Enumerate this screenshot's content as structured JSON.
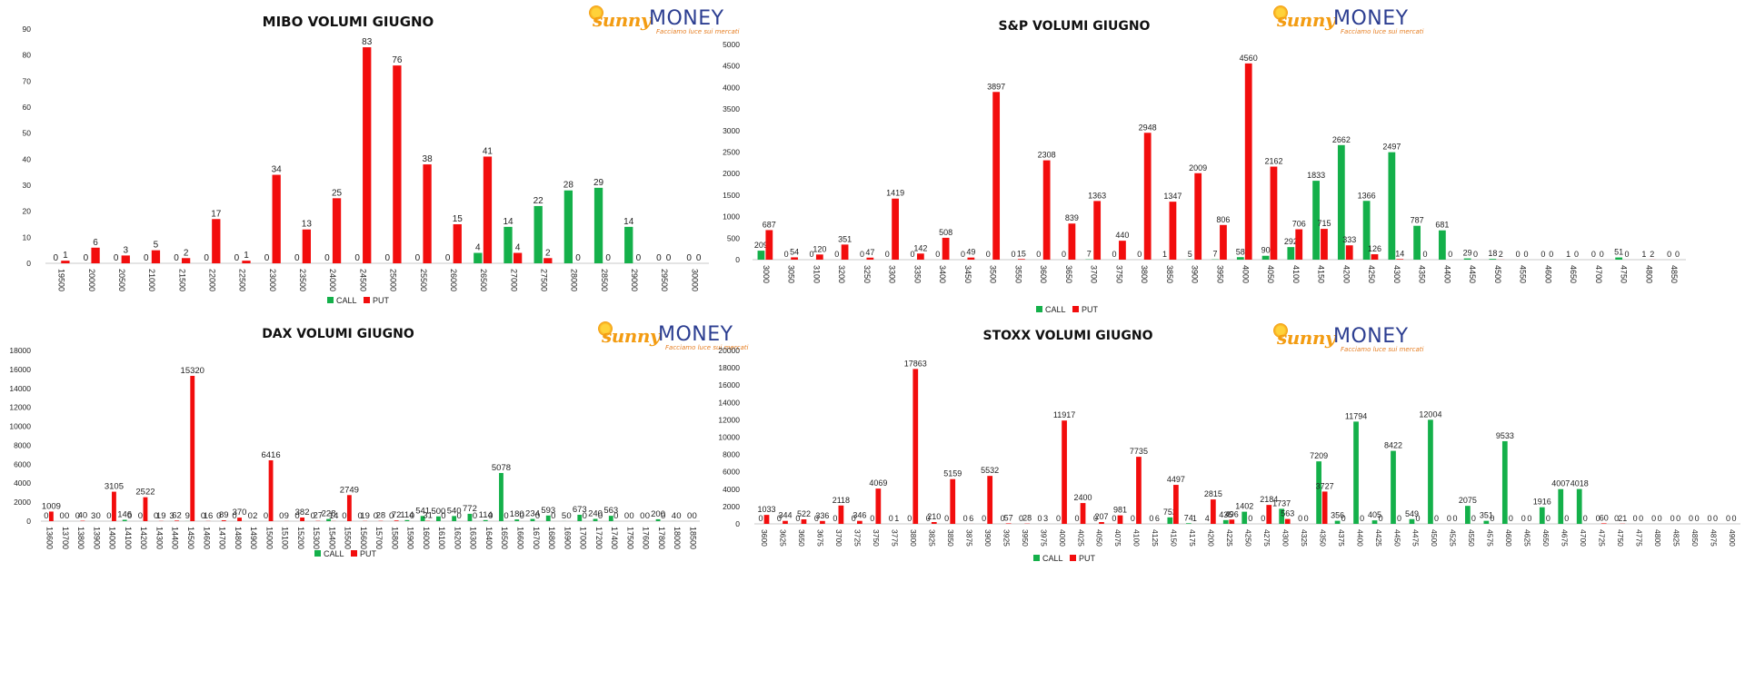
{
  "colors": {
    "call": "#14b04a",
    "put": "#f20d0d",
    "axis": "#c8c8c8",
    "text": "#222222"
  },
  "logo": {
    "brand_a": "sunny",
    "brand_b": "MONEY",
    "tagline": "Facciamo luce sui mercati"
  },
  "chart_data": [
    {
      "type": "bar",
      "title": "MIBO VOLUMI GIUGNO",
      "ylim": [
        0,
        90
      ],
      "yticks": [
        0,
        10,
        20,
        30,
        40,
        50,
        60,
        70,
        80,
        90
      ],
      "legend": "bottom-center",
      "categories": [
        "19500",
        "20000",
        "20500",
        "21000",
        "21500",
        "22000",
        "22500",
        "23000",
        "23500",
        "24000",
        "24500",
        "25000",
        "25500",
        "26000",
        "26500",
        "27000",
        "27500",
        "28000",
        "28500",
        "29000",
        "29500",
        "30000"
      ],
      "series": [
        {
          "name": "CALL",
          "values": [
            0,
            0,
            0,
            0,
            0,
            0,
            0,
            0,
            0,
            0,
            0,
            0,
            0,
            0,
            4,
            14,
            22,
            28,
            29,
            14,
            0,
            0
          ]
        },
        {
          "name": "PUT",
          "values": [
            1,
            6,
            3,
            5,
            2,
            17,
            1,
            34,
            13,
            25,
            83,
            76,
            38,
            15,
            41,
            4,
            2,
            0,
            0,
            0,
            0,
            0
          ]
        }
      ]
    },
    {
      "type": "bar",
      "title": "S&P VOLUMI GIUGNO",
      "ylim": [
        0,
        5000
      ],
      "yticks": [
        0,
        500,
        1000,
        1500,
        2000,
        2500,
        3000,
        3500,
        4000,
        4500,
        5000
      ],
      "legend": "bottom-center",
      "categories": [
        "3000",
        "3050",
        "3100",
        "3200",
        "3250",
        "3300",
        "3350",
        "3400",
        "3450",
        "3500",
        "3550",
        "3600",
        "3650",
        "3700",
        "3750",
        "3800",
        "3850",
        "3900",
        "3950",
        "4000",
        "4050",
        "4100",
        "4150",
        "4200",
        "4250",
        "4300",
        "4350",
        "4400",
        "4450",
        "4500",
        "4550",
        "4600",
        "4650",
        "4700",
        "4750",
        "4800",
        "4850"
      ],
      "series": [
        {
          "name": "CALL",
          "values": [
            209,
            0,
            0,
            0,
            0,
            0,
            0,
            0,
            0,
            0,
            0,
            0,
            0,
            7,
            0,
            0,
            1,
            5,
            7,
            58,
            90,
            292,
            1833,
            2662,
            1366,
            2497,
            787,
            681,
            29,
            18,
            0,
            0,
            1,
            0,
            51,
            1,
            0
          ]
        },
        {
          "name": "PUT",
          "values": [
            687,
            54,
            120,
            351,
            47,
            1419,
            142,
            508,
            49,
            3897,
            15,
            2308,
            839,
            1363,
            440,
            2948,
            1347,
            2009,
            806,
            4560,
            2162,
            706,
            715,
            333,
            126,
            14,
            0,
            0,
            0,
            2,
            0,
            0,
            0,
            0,
            0,
            2,
            0
          ]
        }
      ]
    },
    {
      "type": "bar",
      "title": "DAX VOLUMI GIUGNO",
      "ylim": [
        0,
        18000
      ],
      "yticks": [
        0,
        2000,
        4000,
        6000,
        8000,
        10000,
        12000,
        14000,
        16000,
        18000
      ],
      "legend": "bottom-center",
      "categories": [
        "13600",
        "13700",
        "13800",
        "13900",
        "14000",
        "14100",
        "14200",
        "14300",
        "14400",
        "14500",
        "14600",
        "14700",
        "14800",
        "14900",
        "15000",
        "15100",
        "15200",
        "15300",
        "15400",
        "15500",
        "15600",
        "15700",
        "15800",
        "15900",
        "16000",
        "16100",
        "16200",
        "16300",
        "16400",
        "16500",
        "16600",
        "16700",
        "16800",
        "16900",
        "17000",
        "17200",
        "17400",
        "17500",
        "17600",
        "17800",
        "18000",
        "18500"
      ],
      "series": [
        {
          "name": "CALL",
          "values": [
            0,
            0,
            0,
            3,
            0,
            146,
            0,
            0,
            3,
            9,
            0,
            0,
            0,
            0,
            0,
            0,
            0,
            0,
            228,
            0,
            0,
            0,
            0,
            114,
            541,
            500,
            540,
            772,
            114,
            5078,
            180,
            234,
            593,
            5,
            673,
            240,
            563,
            0,
            0,
            200,
            4,
            0
          ]
        },
        {
          "name": "PUT",
          "values": [
            1009,
            0,
            40,
            0,
            3105,
            0,
            2522,
            19,
            62,
            15320,
            16,
            89,
            370,
            2,
            6416,
            9,
            382,
            27,
            14,
            2749,
            19,
            28,
            72,
            0,
            31,
            0,
            0,
            0,
            0,
            0,
            0,
            0,
            0,
            0,
            0,
            0,
            0,
            0,
            0,
            0,
            0,
            0
          ]
        }
      ]
    },
    {
      "type": "bar",
      "title": "STOXX VOLUMI GIUGNO",
      "ylim": [
        0,
        20000
      ],
      "yticks": [
        0,
        2000,
        4000,
        6000,
        8000,
        10000,
        12000,
        14000,
        16000,
        18000,
        20000
      ],
      "legend": "bottom-center",
      "categories": [
        "3600",
        "3625",
        "3650",
        "3675",
        "3700",
        "3725",
        "3750",
        "3775",
        "3800",
        "3825",
        "3850",
        "3875",
        "3900",
        "3925",
        "3950",
        "3975",
        "4000",
        "4025",
        "4050",
        "4075",
        "4100",
        "4125",
        "4150",
        "4175",
        "4200",
        "4225",
        "4250",
        "4275",
        "4300",
        "4325",
        "4350",
        "4375",
        "4400",
        "4425",
        "4450",
        "4475",
        "4500",
        "4525",
        "4550",
        "4575",
        "4600",
        "4625",
        "4650",
        "4675",
        "4700",
        "4725",
        "4750",
        "4775",
        "4800",
        "4825",
        "4850",
        "4875",
        "4900"
      ],
      "series": [
        {
          "name": "CALL",
          "values": [
            0,
            0,
            0,
            0,
            0,
            0,
            0,
            0,
            0,
            0,
            0,
            0,
            0,
            0,
            0,
            0,
            0,
            0,
            0,
            0,
            0,
            0,
            752,
            74,
            4,
            435,
            1402,
            0,
            1737,
            0,
            7209,
            356,
            11794,
            405,
            8422,
            549,
            12004,
            0,
            2075,
            351,
            9533,
            0,
            1916,
            4007,
            4018,
            0,
            0,
            0,
            0,
            0,
            0,
            0,
            0
          ]
        },
        {
          "name": "PUT",
          "values": [
            1033,
            344,
            522,
            336,
            2118,
            346,
            4069,
            1,
            17863,
            210,
            5159,
            6,
            5532,
            57,
            28,
            3,
            11917,
            2400,
            207,
            981,
            7735,
            6,
            4497,
            1,
            2815,
            496,
            0,
            2184,
            563,
            0,
            3727,
            0,
            0,
            0,
            0,
            0,
            0,
            0,
            0,
            0,
            0,
            0,
            0,
            0,
            0,
            60,
            21,
            0,
            0,
            0,
            0,
            0,
            0
          ]
        }
      ]
    }
  ]
}
